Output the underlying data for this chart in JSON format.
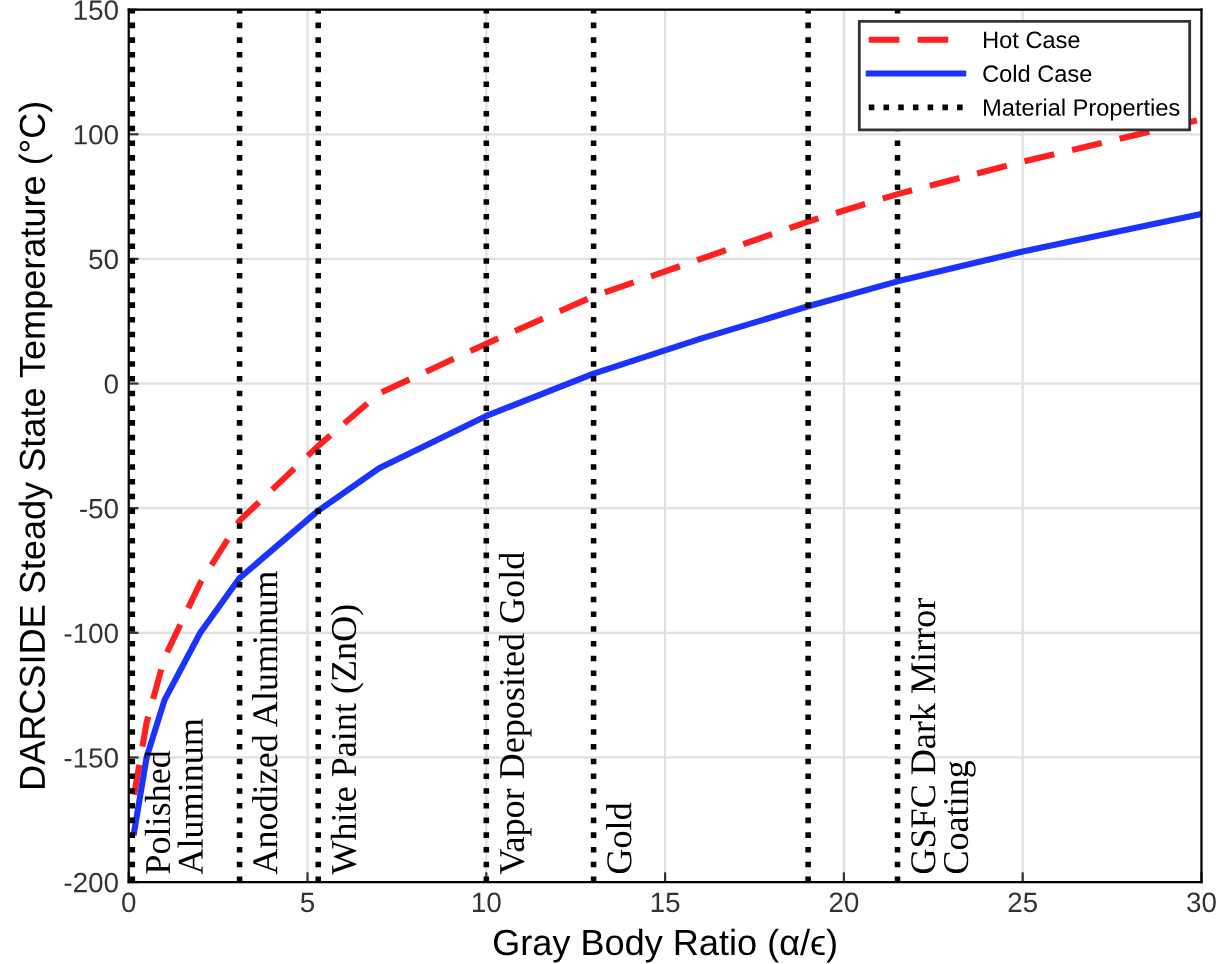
{
  "chart_data": {
    "type": "line",
    "xlabel": "Gray Body Ratio (α/ϵ)",
    "ylabel": "DARCSIDE Steady State Temperature (°C)",
    "xlim": [
      0,
      30
    ],
    "ylim": [
      -200,
      150
    ],
    "xticks": [
      0,
      5,
      10,
      15,
      20,
      25,
      30
    ],
    "yticks": [
      -200,
      -150,
      -100,
      -50,
      0,
      50,
      100,
      150
    ],
    "grid": true,
    "legend": "top right",
    "marker": "none",
    "series": [
      {
        "name": "Hot Case",
        "color": "#ff2020",
        "line_style": "dashed",
        "x": [
          0.15,
          0.5,
          1,
          2,
          3.1,
          5.3,
          7,
          10,
          13,
          16,
          19,
          21.5,
          25,
          30
        ],
        "values": [
          -165,
          -136,
          -110,
          -80,
          -55,
          -25,
          -4,
          16,
          35,
          50,
          65,
          76,
          89,
          106
        ]
      },
      {
        "name": "Cold Case",
        "color": "#1a33ff",
        "line_style": "solid",
        "x": [
          0.15,
          0.5,
          1,
          2,
          3.1,
          5.3,
          7,
          10,
          13,
          16,
          19,
          21.5,
          25,
          30
        ],
        "values": [
          -180,
          -150,
          -127,
          -100,
          -78,
          -51,
          -34,
          -13,
          4,
          18,
          31,
          41,
          53,
          68
        ]
      }
    ],
    "ref_lines": [
      {
        "axis": "x",
        "value": 0.1,
        "label": "Polished\nAluminum",
        "color": "#000000",
        "line_style": "dotted"
      },
      {
        "axis": "x",
        "value": 3.1,
        "label": "Anodized Aluminum",
        "color": "#000000",
        "line_style": "dotted"
      },
      {
        "axis": "x",
        "value": 5.3,
        "label": "White Paint (ZnO)",
        "color": "#000000",
        "line_style": "dotted"
      },
      {
        "axis": "x",
        "value": 10,
        "label": "Vapor Deposited Gold",
        "color": "#000000",
        "line_style": "dotted"
      },
      {
        "axis": "x",
        "value": 13,
        "label": "Gold",
        "color": "#000000",
        "line_style": "dotted"
      },
      {
        "axis": "x",
        "value": 19,
        "label": null,
        "color": "#000000",
        "line_style": "dotted"
      },
      {
        "axis": "x",
        "value": 21.5,
        "label": "GSFC Dark Mirror\nCoating",
        "color": "#000000",
        "line_style": "dotted"
      }
    ],
    "annotations": [
      "Material Properties"
    ]
  }
}
